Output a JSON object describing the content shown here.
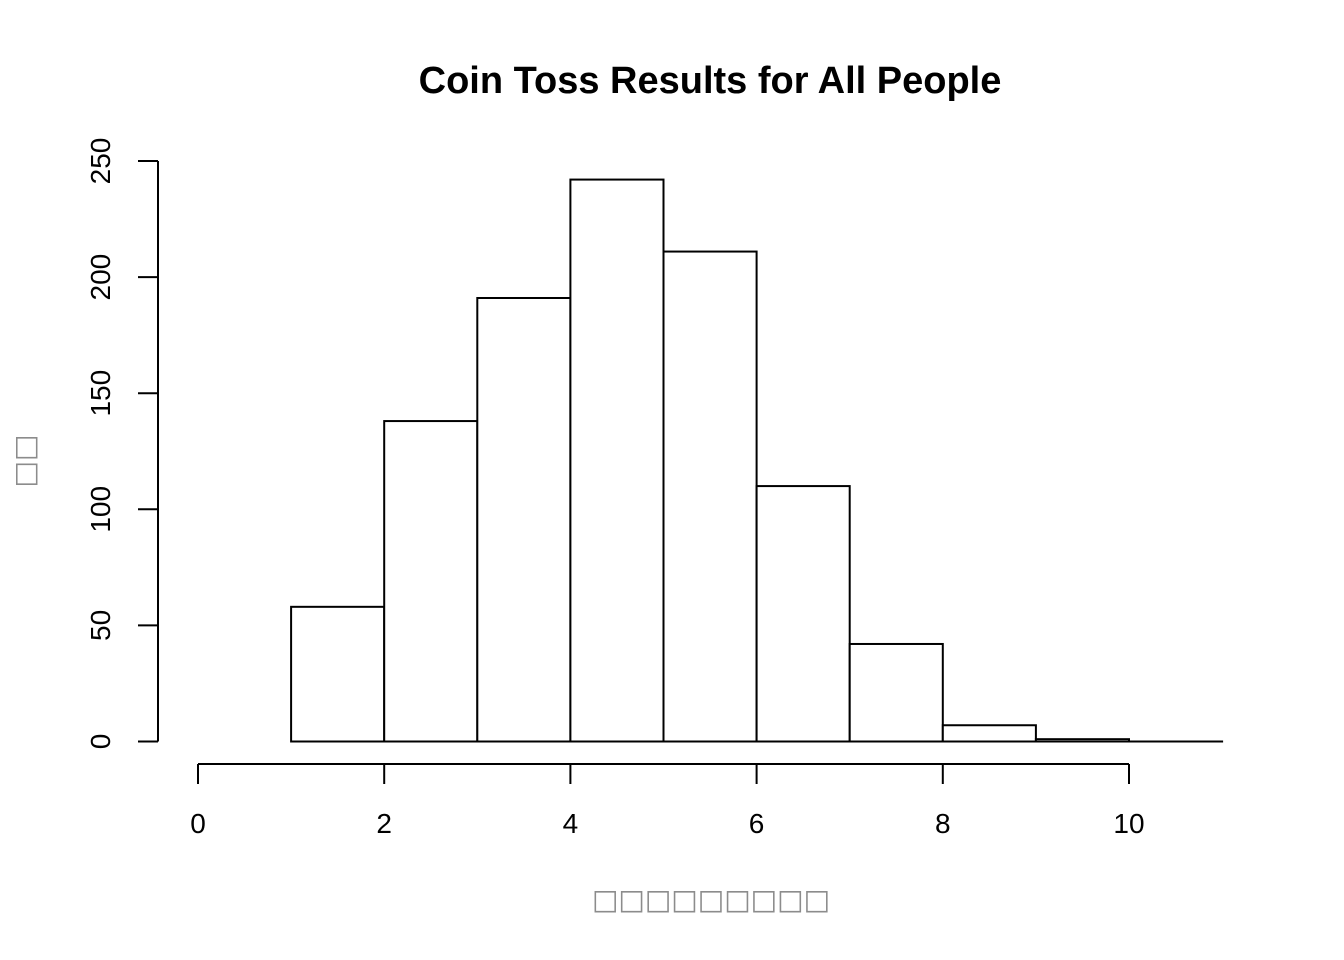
{
  "chart_data": {
    "type": "bar",
    "title": "Coin Toss Results for All People",
    "xlabel": "□□□□□□□□□",
    "ylabel": "□□",
    "bin_edges": [
      1,
      2,
      3,
      4,
      5,
      6,
      7,
      8,
      9,
      10
    ],
    "values": [
      58,
      138,
      191,
      242,
      211,
      110,
      42,
      7,
      1
    ],
    "xlim": [
      0,
      11
    ],
    "ylim": [
      0,
      250
    ],
    "x_ticks": [
      0,
      2,
      4,
      6,
      8,
      10
    ],
    "y_ticks": [
      0,
      50,
      100,
      150,
      200,
      250
    ],
    "grid": false,
    "colors": {
      "bar_fill": "#ffffff",
      "bar_stroke": "#000000",
      "axis_label": "#8c8c8c"
    }
  }
}
